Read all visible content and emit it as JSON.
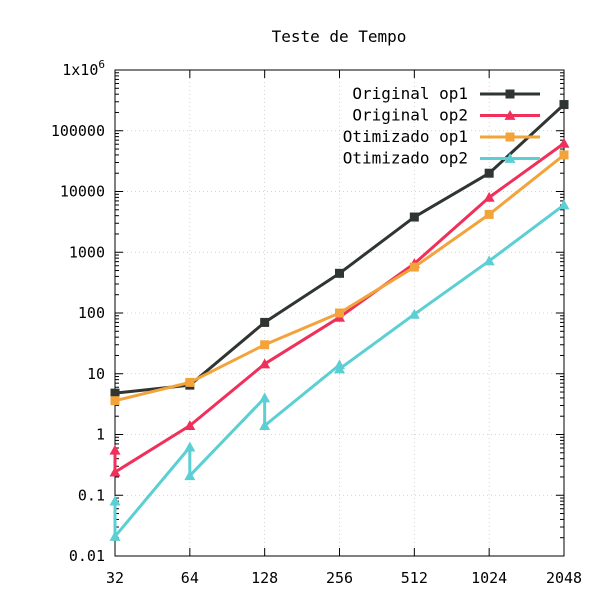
{
  "chart_data": {
    "type": "line",
    "title": "Teste de Tempo",
    "xlabel": "",
    "ylabel": "",
    "y_scale": "log",
    "x_scale": "log2",
    "xlim": [
      32,
      2048
    ],
    "ylim": [
      0.01,
      1000000
    ],
    "grid": true,
    "legend_position": "top-right",
    "x_ticks": [
      32,
      64,
      128,
      256,
      512,
      1024,
      2048
    ],
    "x_tick_labels": [
      "32",
      "64",
      "128",
      "256",
      "512",
      "1024",
      "2048"
    ],
    "y_ticks": [
      0.01,
      0.1,
      1,
      10,
      100,
      1000,
      10000,
      100000,
      1000000
    ],
    "y_tick_labels": [
      "0.01",
      "0.1",
      "1",
      "10",
      "100",
      "1000",
      "10000",
      "100000",
      "1x10^6"
    ],
    "series": [
      {
        "name": "Original op1",
        "color": "#2f3531",
        "marker": "square",
        "points": [
          [
            32,
            4.8
          ],
          [
            64,
            6.5
          ],
          [
            128,
            70
          ],
          [
            256,
            450
          ],
          [
            512,
            3800
          ],
          [
            1024,
            20000
          ],
          [
            2048,
            270000
          ]
        ]
      },
      {
        "name": "Original op2",
        "color": "#f0305a",
        "marker": "triangle",
        "points": [
          [
            32,
            0.55
          ],
          [
            32,
            0.24
          ],
          [
            64,
            1.4
          ],
          [
            128,
            14.5
          ],
          [
            256,
            85
          ],
          [
            512,
            650
          ],
          [
            1024,
            8000
          ],
          [
            2048,
            62000
          ]
        ]
      },
      {
        "name": "Otimizado op1",
        "color": "#f2a33a",
        "marker": "square",
        "points": [
          [
            32,
            3.6
          ],
          [
            64,
            7.2
          ],
          [
            128,
            30
          ],
          [
            256,
            100
          ],
          [
            512,
            570
          ],
          [
            1024,
            4200
          ],
          [
            2048,
            40000
          ]
        ]
      },
      {
        "name": "Otimizado op2",
        "color": "#5bcfd4",
        "marker": "triangle",
        "points": [
          [
            32,
            0.08
          ],
          [
            32,
            0.021
          ],
          [
            64,
            0.62
          ],
          [
            64,
            0.21
          ],
          [
            128,
            4.0
          ],
          [
            128,
            1.4
          ],
          [
            256,
            14
          ],
          [
            256,
            12
          ],
          [
            512,
            95
          ],
          [
            1024,
            720
          ],
          [
            2048,
            6000
          ]
        ]
      }
    ]
  }
}
